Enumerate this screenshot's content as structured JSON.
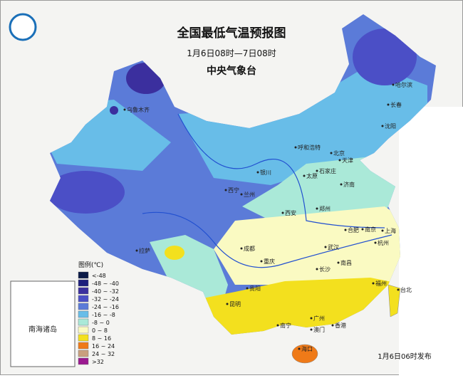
{
  "header": {
    "title": "全国最低气温预报图",
    "subtitle": "1月6日08时—7日08时",
    "issuer": "中央气象台"
  },
  "legend": {
    "title": "图例(℃)",
    "items": [
      {
        "label": "<-48",
        "color": "#0b1a48"
      },
      {
        "label": "-48 ~ -40",
        "color": "#1e1f7c"
      },
      {
        "label": "-40 ~ -32",
        "color": "#3b2f9e"
      },
      {
        "label": "-32 ~ -24",
        "color": "#4b4fc6"
      },
      {
        "label": "-24 ~ -16",
        "color": "#5b7bd8"
      },
      {
        "label": "-16 ~ -8",
        "color": "#68bde8"
      },
      {
        "label": "-8 ~ 0",
        "color": "#aae9d8"
      },
      {
        "label": "0 ~ 8",
        "color": "#fafac2"
      },
      {
        "label": "8 ~ 16",
        "color": "#f3e01e"
      },
      {
        "label": "16 ~ 24",
        "color": "#ef7a18"
      },
      {
        "label": "24 ~ 32",
        "color": "#c9a07e"
      },
      {
        "label": ">32",
        "color": "#9b1990"
      }
    ]
  },
  "cities": [
    "乌鲁木齐",
    "哈尔滨",
    "长春",
    "沈阳",
    "呼和浩特",
    "北京",
    "天津",
    "银川",
    "石家庄",
    "太原",
    "济南",
    "西宁",
    "兰州",
    "郑州",
    "西安",
    "合肥",
    "南京",
    "上海",
    "杭州",
    "拉萨",
    "成都",
    "武汉",
    "重庆",
    "长沙",
    "南昌",
    "福州",
    "台北",
    "贵阳",
    "昆明",
    "南宁",
    "广州",
    "香港",
    "澳门",
    "海口"
  ],
  "inset": {
    "label": "南海诸岛"
  },
  "footer": {
    "release": "1月6日06时发布"
  }
}
